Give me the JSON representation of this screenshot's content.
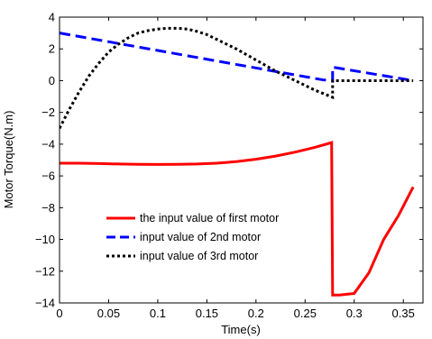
{
  "chart_data": {
    "type": "line",
    "title": "",
    "xlabel": "Time(s)",
    "ylabel": "Motor Torque(N.m)",
    "xlim": [
      0,
      0.37
    ],
    "ylim": [
      -14,
      4
    ],
    "xticks": [
      0,
      0.05,
      0.1,
      0.15,
      0.2,
      0.25,
      0.3,
      0.35
    ],
    "xtick_labels": [
      "0",
      "0.05",
      "0.1",
      "0.15",
      "0.2",
      "0.25",
      "0.3",
      "0.35"
    ],
    "yticks": [
      -14,
      -12,
      -10,
      -8,
      -6,
      -4,
      -2,
      0,
      2,
      4
    ],
    "ytick_labels": [
      "−14",
      "−12",
      "−10",
      "−8",
      "−6",
      "−4",
      "−2",
      "0",
      "2",
      "4"
    ],
    "grid": false,
    "legend_position": "lower-left",
    "series": [
      {
        "name": "the input value of first motor",
        "color": "#ff0000",
        "style": "solid",
        "points": [
          [
            0,
            -5.2
          ],
          [
            0.02,
            -5.2
          ],
          [
            0.04,
            -5.22
          ],
          [
            0.06,
            -5.25
          ],
          [
            0.08,
            -5.27
          ],
          [
            0.1,
            -5.28
          ],
          [
            0.12,
            -5.27
          ],
          [
            0.14,
            -5.25
          ],
          [
            0.16,
            -5.2
          ],
          [
            0.18,
            -5.1
          ],
          [
            0.2,
            -4.95
          ],
          [
            0.22,
            -4.75
          ],
          [
            0.24,
            -4.5
          ],
          [
            0.26,
            -4.2
          ],
          [
            0.277,
            -3.9
          ],
          [
            0.278,
            -13.5
          ],
          [
            0.285,
            -13.5
          ],
          [
            0.3,
            -13.4
          ],
          [
            0.315,
            -12.1
          ],
          [
            0.33,
            -10.0
          ],
          [
            0.345,
            -8.5
          ],
          [
            0.36,
            -6.7
          ]
        ]
      },
      {
        "name": "input value of 2nd motor",
        "color": "#0000ff",
        "style": "dashed",
        "points": [
          [
            0,
            3.0
          ],
          [
            0.268,
            0.05
          ],
          [
            0.278,
            0.0
          ],
          [
            0.278,
            0.85
          ],
          [
            0.36,
            0.0
          ]
        ]
      },
      {
        "name": "input value of 3rd motor",
        "color": "#000000",
        "style": "dotted",
        "points": [
          [
            0,
            -3.0
          ],
          [
            0.01,
            -1.8
          ],
          [
            0.02,
            -0.7
          ],
          [
            0.03,
            0.3
          ],
          [
            0.04,
            1.1
          ],
          [
            0.05,
            1.8
          ],
          [
            0.06,
            2.3
          ],
          [
            0.07,
            2.7
          ],
          [
            0.08,
            3.0
          ],
          [
            0.09,
            3.15
          ],
          [
            0.1,
            3.25
          ],
          [
            0.11,
            3.3
          ],
          [
            0.12,
            3.3
          ],
          [
            0.13,
            3.25
          ],
          [
            0.14,
            3.1
          ],
          [
            0.15,
            2.9
          ],
          [
            0.16,
            2.6
          ],
          [
            0.17,
            2.3
          ],
          [
            0.18,
            2.0
          ],
          [
            0.19,
            1.65
          ],
          [
            0.2,
            1.3
          ],
          [
            0.21,
            0.95
          ],
          [
            0.22,
            0.6
          ],
          [
            0.23,
            0.3
          ],
          [
            0.24,
            0.0
          ],
          [
            0.25,
            -0.3
          ],
          [
            0.26,
            -0.6
          ],
          [
            0.27,
            -0.85
          ],
          [
            0.278,
            -1.05
          ],
          [
            0.278,
            0.0
          ],
          [
            0.36,
            0.0
          ]
        ]
      }
    ]
  }
}
